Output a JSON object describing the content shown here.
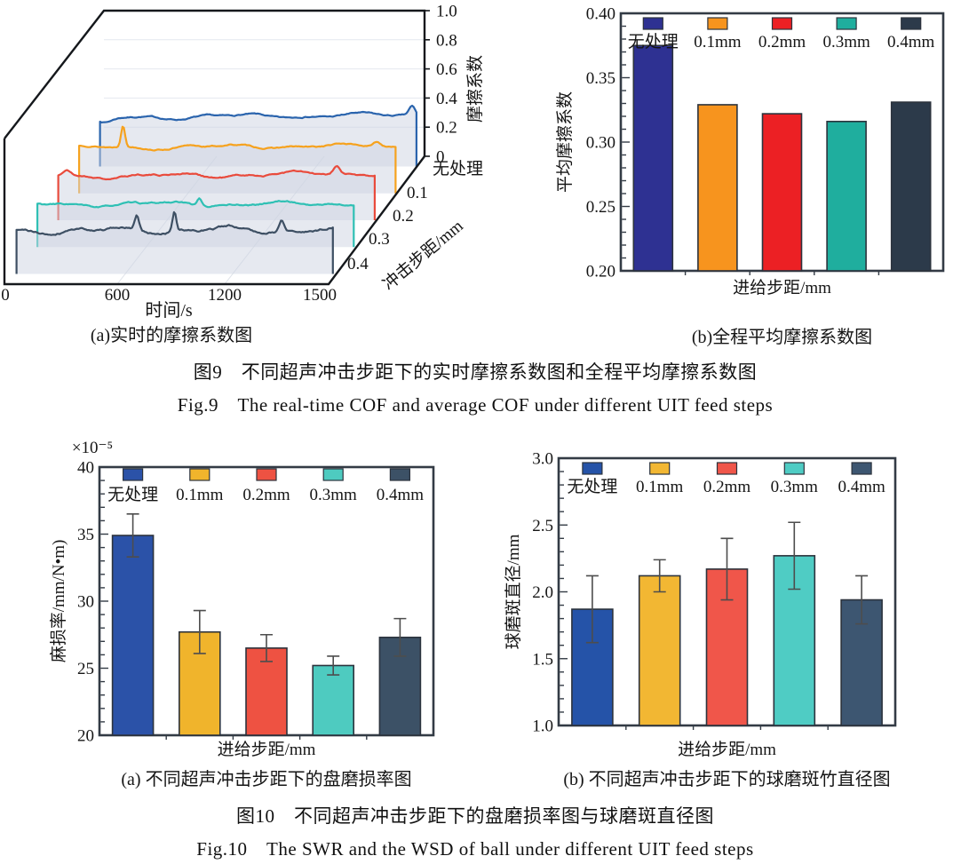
{
  "figure9": {
    "caption_zh": "图9　不同超声冲击步距下的实时摩擦系数图和全程平均摩擦系数图",
    "caption_en": "Fig.9　The real-time COF and average COF under different UIT feed steps"
  },
  "figure10": {
    "caption_zh": "图10　不同超声冲击步距下的盘磨损率图与球磨斑直径图",
    "caption_en": "Fig.10　The SWR and the WSD of ball under different UIT feed steps"
  },
  "chart_data": [
    {
      "id": "realtime_cof",
      "type": "line",
      "subcaption": "(a)实时的摩擦系数图",
      "xlabel": "时间/s",
      "x_ticks": [
        "0",
        "600",
        "1200",
        "1500"
      ],
      "xlim": [
        0,
        1590
      ],
      "zlabel": "摩擦系数",
      "z_ticks": [
        "0",
        "0.2",
        "0.4",
        "0.6",
        "0.8",
        "1.0"
      ],
      "zlim": [
        0,
        1.0
      ],
      "ylabel": "冲击步距/mm",
      "y_categories": [
        "无处理",
        "0.1",
        "0.2",
        "0.3",
        "0.4"
      ],
      "series": [
        {
          "name": "无处理",
          "color": "#2a64ad",
          "mean_cof": 0.335,
          "trend": 0.02,
          "amp": 0.011,
          "jitter": 0.006,
          "seed": 7,
          "spikes": [
            [
              40,
              -0.045,
              55
            ],
            [
              1550,
              0.06,
              20
            ]
          ]
        },
        {
          "name": "0.1mm",
          "color": "#f6a21e",
          "mean_cof": 0.315,
          "trend": 0.012,
          "amp": 0.01,
          "jitter": 0.006,
          "seed": 13,
          "spikes": [
            [
              235,
              0.15,
              14
            ],
            [
              1480,
              0.03,
              22
            ]
          ]
        },
        {
          "name": "0.2mm",
          "color": "#e94b3c",
          "mean_cof": 0.3,
          "trend": 0.02,
          "amp": 0.013,
          "jitter": 0.007,
          "seed": 21,
          "spikes": [
            [
              60,
              0.04,
              30
            ],
            [
              1385,
              0.055,
              22
            ]
          ]
        },
        {
          "name": "0.3mm",
          "color": "#2fc0b4",
          "mean_cof": 0.29,
          "trend": 0.008,
          "amp": 0.012,
          "jitter": 0.007,
          "seed": 33,
          "spikes": [
            [
              815,
              0.05,
              18
            ]
          ]
        },
        {
          "name": "0.4mm",
          "color": "#3d4f63",
          "mean_cof": 0.298,
          "trend": 0.004,
          "amp": 0.017,
          "jitter": 0.01,
          "seed": 41,
          "spikes": [
            [
              610,
              0.1,
              15
            ],
            [
              795,
              0.13,
              13
            ],
            [
              1320,
              0.075,
              16
            ]
          ]
        }
      ]
    },
    {
      "id": "avg_cof",
      "type": "bar",
      "subcaption": "(b)全程平均摩擦系数图",
      "xlabel": "进给步距/mm",
      "ylabel": "平均摩擦系数",
      "categories": [
        "无处理",
        "0.1mm",
        "0.2mm",
        "0.3mm",
        "0.4mm"
      ],
      "values": [
        0.375,
        0.329,
        0.322,
        0.316,
        0.331
      ],
      "colors": [
        "#2e3192",
        "#f7941e",
        "#ec2024",
        "#1fae9e",
        "#2c3a4a"
      ],
      "ylim": [
        0.2,
        0.4
      ],
      "y_major": 0.05,
      "y_minor": 0.01,
      "tick_decimals": 2,
      "grid": false,
      "legend_position": "top-inside"
    },
    {
      "id": "swr",
      "type": "bar",
      "subcaption": "(a) 不同超声冲击步距下的盘磨损率图",
      "xlabel": "进给步距/mm",
      "ylabel": "麻损率/mm/N•m)",
      "y_multiplier": "×10⁻⁵",
      "categories": [
        "无处理",
        "0.1mm",
        "0.2mm",
        "0.3mm",
        "0.4mm"
      ],
      "values": [
        34.9,
        27.7,
        26.5,
        25.2,
        27.3
      ],
      "errors": [
        1.6,
        1.6,
        1.0,
        0.7,
        1.4
      ],
      "colors": [
        "#2b52a8",
        "#f0b42c",
        "#ee5242",
        "#4ecbc0",
        "#3c5166"
      ],
      "ylim": [
        20,
        40
      ],
      "y_major": 5,
      "y_minor": 1,
      "tick_decimals": 0,
      "grid": false,
      "legend_position": "top-inside"
    },
    {
      "id": "wsd",
      "type": "bar",
      "subcaption": "(b) 不同超声冲击步距下的球磨斑竹直径图",
      "xlabel": "进给步距/mm",
      "ylabel": "球磨斑直径/mm",
      "categories": [
        "无处理",
        "0.1mm",
        "0.2mm",
        "0.3mm",
        "0.4mm"
      ],
      "values": [
        1.87,
        2.12,
        2.17,
        2.27,
        1.94
      ],
      "errors": [
        0.25,
        0.12,
        0.23,
        0.25,
        0.18
      ],
      "colors": [
        "#2553a8",
        "#f2b733",
        "#f0564a",
        "#4fccc4",
        "#3d5671"
      ],
      "ylim": [
        1.0,
        3.0
      ],
      "y_major": 0.5,
      "y_minor": 0.1,
      "tick_decimals": 1,
      "grid": false,
      "legend_position": "top-inside"
    }
  ]
}
